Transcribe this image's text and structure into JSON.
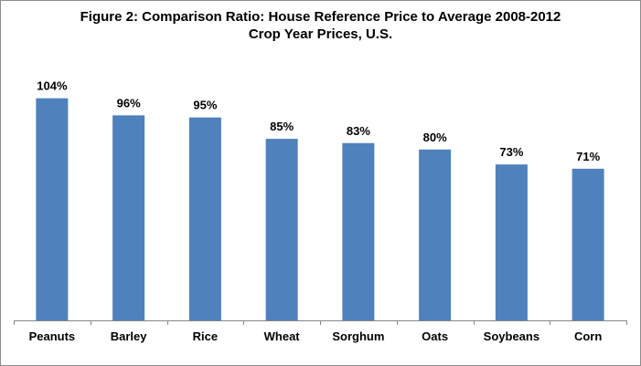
{
  "chart_data": {
    "type": "bar",
    "title": "Figure 2:  Comparison  Ratio:  House Reference Price to Average 2008-2012\nCrop Year Prices, U.S.",
    "categories": [
      "Peanuts",
      "Barley",
      "Rice",
      "Wheat",
      "Sorghum",
      "Oats",
      "Soybeans",
      "Corn"
    ],
    "values": [
      104,
      96,
      95,
      85,
      83,
      80,
      73,
      71
    ],
    "data_labels": [
      "104%",
      "96%",
      "95%",
      "85%",
      "83%",
      "80%",
      "73%",
      "71%"
    ],
    "xlabel": "",
    "ylabel": "",
    "ylim": [
      0,
      110
    ],
    "grid": false,
    "legend": "none",
    "bar_color": "#4f81bd",
    "axis_color": "#868686"
  }
}
